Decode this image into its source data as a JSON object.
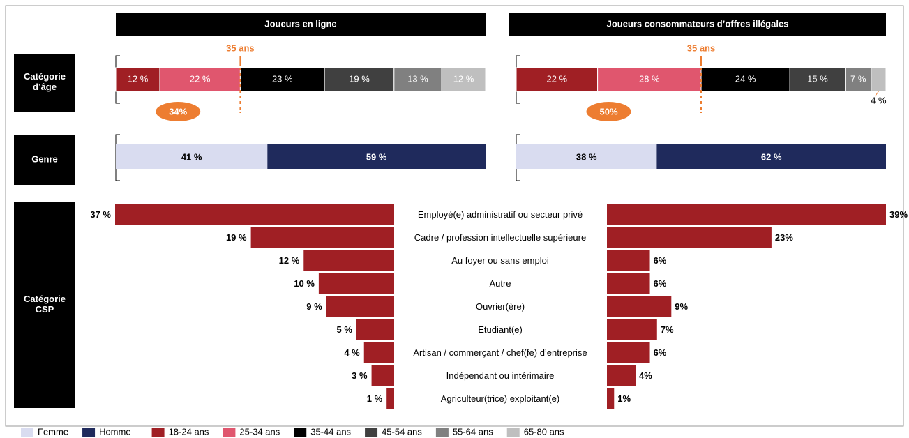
{
  "columns": [
    "Joueurs en ligne",
    "Joueurs consommateurs d’offres illégales"
  ],
  "rows": [
    "Catégorie\nd’âge",
    "Genre",
    "Catégorie\nCSP"
  ],
  "age": {
    "marker_label": "35 ans",
    "marker_after": 2,
    "marker_color": "#ed7d31",
    "groups": [
      "18-24 ans",
      "25-34 ans",
      "35-44 ans",
      "45-54 ans",
      "55-64 ans",
      "65-80 ans"
    ],
    "colors": [
      "#a01f24",
      "#e0566e",
      "#000000",
      "#404040",
      "#808080",
      "#bfbfbf"
    ],
    "values": [
      [
        12,
        22,
        23,
        19,
        13,
        12
      ],
      [
        22,
        28,
        24,
        15,
        7,
        4
      ]
    ],
    "value_labels": [
      [
        "12 %",
        "22 %",
        "23 %",
        "19 %",
        "13 %",
        "12 %"
      ],
      [
        "22 %",
        "28 %",
        "24 %",
        "15 %",
        "7 %",
        "4 %"
      ]
    ],
    "under35": [
      34,
      50
    ],
    "under35_labels": [
      "34%",
      "50%"
    ]
  },
  "gender": {
    "groups": [
      "Femme",
      "Homme"
    ],
    "colors": [
      "#d9dcf0",
      "#1f2a5c"
    ],
    "values": [
      [
        41,
        59
      ],
      [
        38,
        62
      ]
    ],
    "value_labels": [
      [
        "41 %",
        "59 %"
      ],
      [
        "38 %",
        "62 %"
      ]
    ]
  },
  "csp": {
    "color": "#a01f24",
    "categories": [
      "Employé(e) administratif ou secteur privé",
      "Cadre / profession intellectuelle supérieure",
      "Au foyer ou sans emploi",
      "Autre",
      "Ouvrier(ère)",
      "Etudiant(e)",
      "Artisan / commerçant / chef(fe) d’entreprise",
      "Indépendant ou intérimaire",
      "Agriculteur(trice)  exploitant(e)"
    ],
    "values": [
      [
        37,
        19,
        12,
        10,
        9,
        5,
        4,
        3,
        1
      ],
      [
        39,
        23,
        6,
        6,
        9,
        7,
        6,
        4,
        1
      ]
    ],
    "value_labels": [
      [
        "37 %",
        "19 %",
        "12 %",
        "10 %",
        "9 %",
        "5 %",
        "4 %",
        "3 %",
        "1 %"
      ],
      [
        "39%",
        "23%",
        "6%",
        "6%",
        "9%",
        "7%",
        "6%",
        "4%",
        "1%"
      ]
    ]
  }
}
